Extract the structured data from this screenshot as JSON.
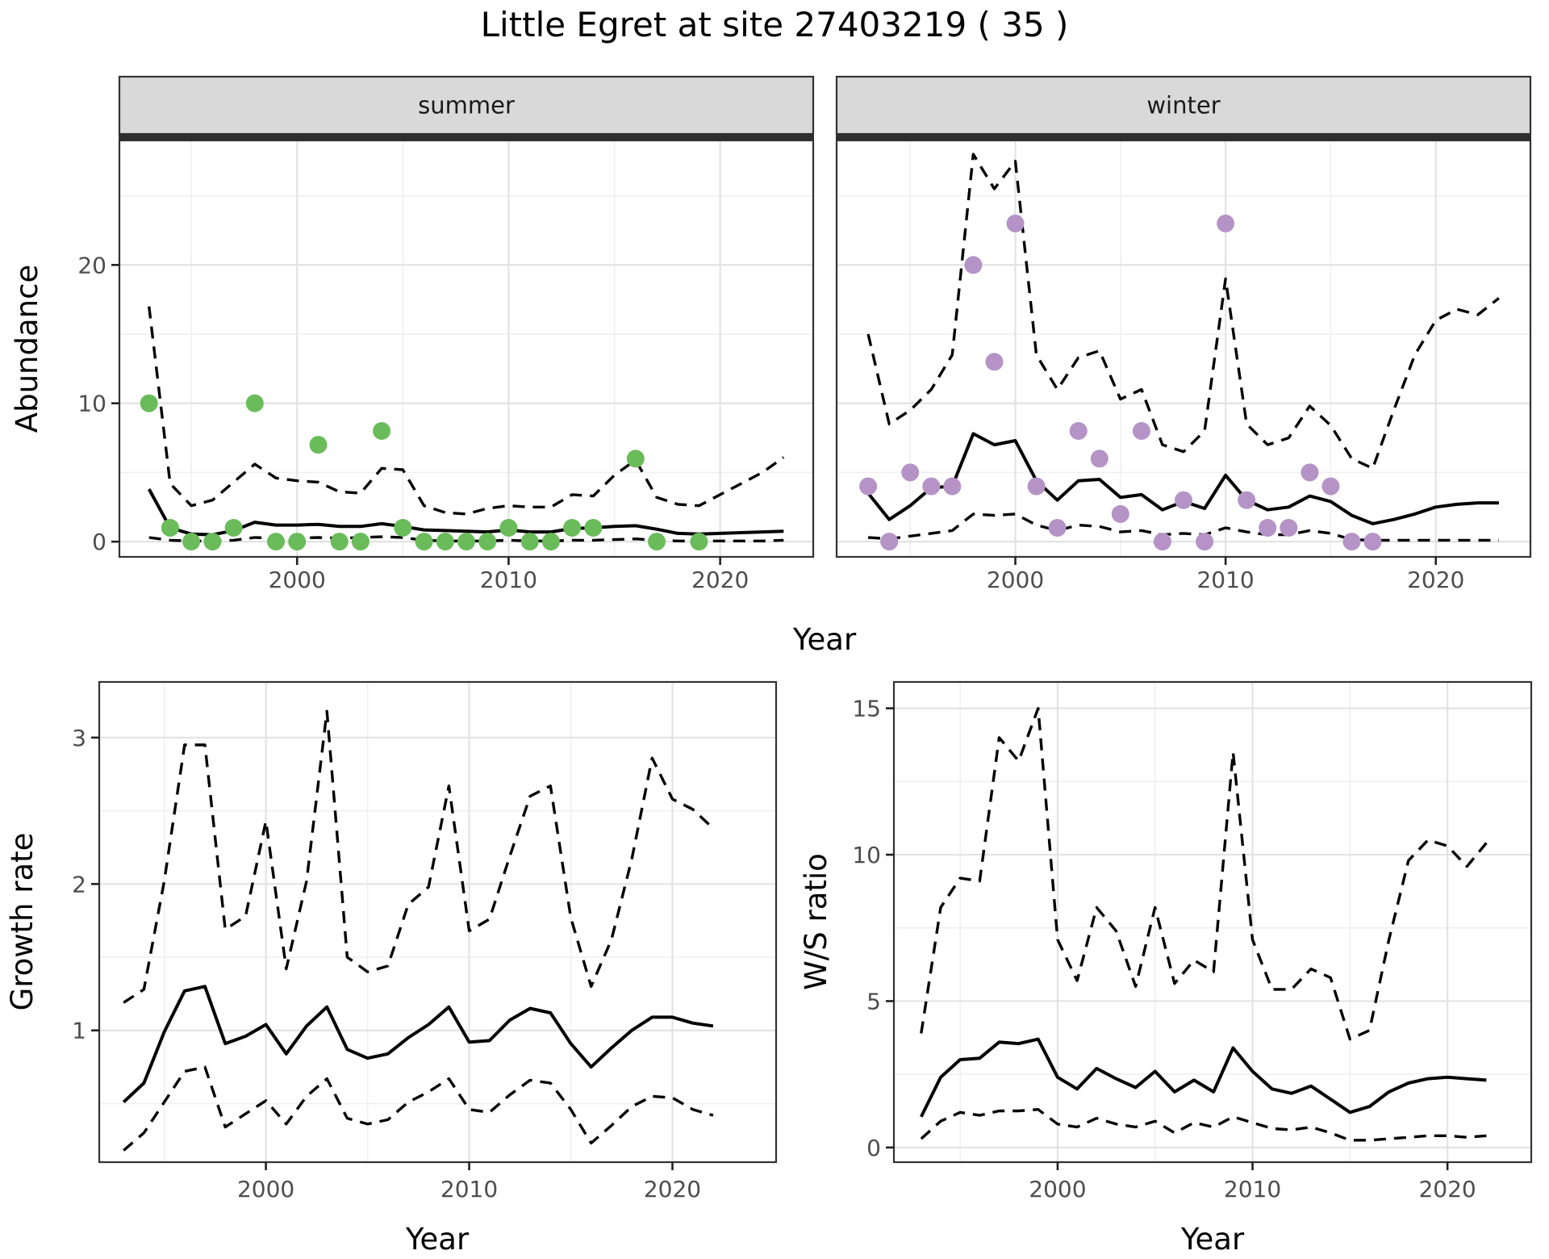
{
  "title": "Little Egret at site 27403219 ( 35 )",
  "colors": {
    "observed_summer": "#6abc5a",
    "observed_winter": "#b593c6",
    "line": "#000000",
    "grid_major": "#e3e3e3",
    "grid_minor": "#efefef",
    "strip_bg": "#d9d9d9",
    "strip_border": "#333333",
    "strip_band": "#2e2e2e",
    "panel_border": "#333333",
    "tick_label": "#4d4d4d",
    "axis_title": "#000000",
    "strip_text": "#1a1a1a"
  },
  "facets": {
    "summer": "summer",
    "winter": "winter"
  },
  "axis_titles": {
    "x": "Year",
    "y_abundance": "Abundance",
    "y_growth": "Growth rate",
    "y_ws": "W/S ratio"
  },
  "chart_data": [
    {
      "id": "abundance_summer",
      "type": "line",
      "facet": "summer",
      "xlabel": "Year",
      "ylabel": "Abundance",
      "grid": true,
      "legend": "none",
      "xlim": [
        1991.6,
        2024.4
      ],
      "ylim": [
        -1.1,
        29.0
      ],
      "x_ticks": {
        "major": [
          2000,
          2010,
          2020
        ],
        "labels": [
          "2000",
          "2010",
          "2020"
        ],
        "minor": [
          1995,
          2005,
          2015
        ]
      },
      "y_ticks": {
        "major": [
          0,
          10,
          20
        ],
        "labels": [
          "0",
          "10",
          "20"
        ],
        "minor": [
          5,
          15,
          25
        ]
      },
      "years": [
        1993,
        1994,
        1995,
        1996,
        1997,
        1998,
        1999,
        2000,
        2001,
        2002,
        2003,
        2004,
        2005,
        2006,
        2007,
        2008,
        2009,
        2010,
        2011,
        2012,
        2013,
        2014,
        2015,
        2016,
        2017,
        2018,
        2019,
        2020,
        2021,
        2022,
        2023
      ],
      "series": [
        {
          "name": "median",
          "style": "solid",
          "values": [
            3.8,
            1.0,
            0.55,
            0.5,
            0.8,
            1.4,
            1.2,
            1.2,
            1.25,
            1.1,
            1.1,
            1.3,
            1.1,
            0.85,
            0.8,
            0.75,
            0.7,
            0.85,
            0.7,
            0.7,
            0.95,
            1.0,
            1.1,
            1.15,
            0.9,
            0.6,
            0.55,
            0.6,
            0.65,
            0.7,
            0.75
          ]
        },
        {
          "name": "lower_95ci",
          "style": "dashed",
          "values": [
            0.3,
            0.1,
            0.05,
            0.05,
            0.1,
            0.3,
            0.25,
            0.25,
            0.3,
            0.25,
            0.3,
            0.35,
            0.3,
            0.1,
            0.05,
            0.05,
            0.05,
            0.1,
            0.05,
            0.05,
            0.1,
            0.1,
            0.15,
            0.2,
            0.1,
            0.05,
            0.05,
            0.05,
            0.05,
            0.05,
            0.1
          ]
        },
        {
          "name": "upper_95ci",
          "style": "dashed",
          "values": [
            17.0,
            4.2,
            2.6,
            3.0,
            4.3,
            5.6,
            4.6,
            4.4,
            4.3,
            3.6,
            3.5,
            5.3,
            5.2,
            2.6,
            2.1,
            2.0,
            2.4,
            2.6,
            2.5,
            2.5,
            3.4,
            3.3,
            4.8,
            5.9,
            3.2,
            2.7,
            2.6,
            3.4,
            4.2,
            5.0,
            6.1
          ]
        }
      ],
      "points": {
        "name": "observed_counts",
        "color_key": "observed_summer",
        "x": [
          1993,
          1994,
          1995,
          1996,
          1997,
          1998,
          1999,
          2000,
          2001,
          2002,
          2003,
          2004,
          2005,
          2006,
          2007,
          2008,
          2009,
          2010,
          2011,
          2012,
          2013,
          2014,
          2016,
          2017,
          2019
        ],
        "y": [
          10,
          1,
          0,
          0,
          1,
          10,
          0,
          0,
          7,
          0,
          0,
          8,
          1,
          0,
          0,
          0,
          0,
          1,
          0,
          0,
          1,
          1,
          6,
          0,
          0
        ]
      }
    },
    {
      "id": "abundance_winter",
      "type": "line",
      "facet": "winter",
      "xlabel": "Year",
      "ylabel": "Abundance",
      "grid": true,
      "legend": "none",
      "xlim": [
        1991.5,
        2024.5
      ],
      "ylim": [
        -1.1,
        29.0
      ],
      "x_ticks": {
        "major": [
          2000,
          2010,
          2020
        ],
        "labels": [
          "2000",
          "2010",
          "2020"
        ],
        "minor": [
          1995,
          2005,
          2015
        ]
      },
      "y_ticks": {
        "major": [
          0,
          10,
          20
        ],
        "labels": [],
        "minor": [
          5,
          15,
          25
        ]
      },
      "years": [
        1993,
        1994,
        1995,
        1996,
        1997,
        1998,
        1999,
        2000,
        2001,
        2002,
        2003,
        2004,
        2005,
        2006,
        2007,
        2008,
        2009,
        2010,
        2011,
        2012,
        2013,
        2014,
        2015,
        2016,
        2017,
        2018,
        2019,
        2020,
        2021,
        2022,
        2023
      ],
      "series": [
        {
          "name": "median",
          "style": "solid",
          "values": [
            3.5,
            1.6,
            2.6,
            3.9,
            4.0,
            7.8,
            7.0,
            7.3,
            4.4,
            3.0,
            4.4,
            4.5,
            3.2,
            3.4,
            2.3,
            2.9,
            2.4,
            4.8,
            3.0,
            2.3,
            2.5,
            3.3,
            2.9,
            1.9,
            1.3,
            1.6,
            2.0,
            2.5,
            2.7,
            2.8,
            2.8
          ]
        },
        {
          "name": "lower_95ci",
          "style": "dashed",
          "values": [
            0.3,
            0.2,
            0.4,
            0.6,
            0.8,
            2.0,
            1.9,
            2.0,
            1.2,
            0.8,
            1.2,
            1.1,
            0.7,
            0.8,
            0.5,
            0.6,
            0.5,
            1.0,
            0.7,
            0.5,
            0.5,
            0.8,
            0.6,
            0.15,
            0.1,
            0.1,
            0.1,
            0.1,
            0.1,
            0.1,
            0.1
          ]
        },
        {
          "name": "upper_95ci",
          "style": "dashed",
          "values": [
            15.0,
            8.5,
            9.5,
            11.0,
            13.5,
            28.0,
            25.5,
            27.5,
            13.5,
            11.0,
            13.3,
            13.8,
            10.3,
            11.0,
            7.0,
            6.5,
            8.0,
            19.0,
            8.5,
            7.0,
            7.5,
            9.8,
            8.4,
            6.0,
            5.3,
            9.5,
            13.5,
            16.0,
            16.8,
            16.4,
            17.6
          ]
        }
      ],
      "points": {
        "name": "observed_counts",
        "color_key": "observed_winter",
        "x": [
          1993,
          1994,
          1995,
          1996,
          1997,
          1998,
          1999,
          2000,
          2001,
          2002,
          2003,
          2004,
          2005,
          2006,
          2007,
          2008,
          2009,
          2010,
          2011,
          2012,
          2013,
          2014,
          2015,
          2016,
          2017
        ],
        "y": [
          4,
          0,
          5,
          4,
          4,
          20,
          13,
          23,
          4,
          1,
          8,
          6,
          2,
          8,
          0,
          3,
          0,
          23,
          3,
          1,
          1,
          5,
          4,
          0,
          0
        ]
      }
    },
    {
      "id": "growth_rate",
      "type": "line",
      "facet": null,
      "xlabel": "Year",
      "ylabel": "Growth rate",
      "grid": true,
      "legend": "none",
      "xlim": [
        1991.8,
        2025.1
      ],
      "ylim": [
        0.1,
        3.38
      ],
      "x_ticks": {
        "major": [
          2000,
          2010,
          2020
        ],
        "labels": [
          "2000",
          "2010",
          "2020"
        ],
        "minor": [
          1995,
          2005,
          2015
        ]
      },
      "y_ticks": {
        "major": [
          1,
          2,
          3
        ],
        "labels": [
          "1",
          "2",
          "3"
        ],
        "minor": [
          0.5,
          1.5,
          2.5
        ]
      },
      "years": [
        1993,
        1994,
        1995,
        1996,
        1997,
        1998,
        1999,
        2000,
        2001,
        2002,
        2003,
        2004,
        2005,
        2006,
        2007,
        2008,
        2009,
        2010,
        2011,
        2012,
        2013,
        2014,
        2015,
        2016,
        2017,
        2018,
        2019,
        2020,
        2021,
        2022
      ],
      "series": [
        {
          "name": "median",
          "style": "solid",
          "values": [
            0.51,
            0.64,
            0.99,
            1.27,
            1.3,
            0.91,
            0.96,
            1.04,
            0.84,
            1.03,
            1.16,
            0.87,
            0.81,
            0.84,
            0.95,
            1.04,
            1.16,
            0.92,
            0.93,
            1.07,
            1.15,
            1.12,
            0.91,
            0.75,
            0.88,
            1.0,
            1.09,
            1.09,
            1.05,
            1.03
          ]
        },
        {
          "name": "lower_95ci",
          "style": "dashed",
          "values": [
            0.18,
            0.3,
            0.51,
            0.72,
            0.75,
            0.34,
            0.43,
            0.52,
            0.36,
            0.55,
            0.67,
            0.4,
            0.36,
            0.39,
            0.51,
            0.58,
            0.67,
            0.46,
            0.44,
            0.56,
            0.66,
            0.64,
            0.46,
            0.23,
            0.35,
            0.48,
            0.55,
            0.54,
            0.46,
            0.42
          ]
        },
        {
          "name": "upper_95ci",
          "style": "dashed",
          "values": [
            1.19,
            1.28,
            2.02,
            2.95,
            2.95,
            1.69,
            1.78,
            2.43,
            1.42,
            2.02,
            3.18,
            1.5,
            1.4,
            1.44,
            1.86,
            1.98,
            2.67,
            1.68,
            1.76,
            2.19,
            2.6,
            2.67,
            1.77,
            1.3,
            1.62,
            2.17,
            2.86,
            2.58,
            2.51,
            2.38
          ]
        }
      ],
      "points": null
    },
    {
      "id": "ws_ratio",
      "type": "line",
      "facet": null,
      "xlabel": "Year",
      "ylabel": "W/S ratio",
      "grid": true,
      "legend": "none",
      "xlim": [
        1991.6,
        2024.3
      ],
      "ylim": [
        -0.5,
        15.9
      ],
      "x_ticks": {
        "major": [
          2000,
          2010,
          2020
        ],
        "labels": [
          "2000",
          "2010",
          "2020"
        ],
        "minor": [
          1995,
          2005,
          2015
        ]
      },
      "y_ticks": {
        "major": [
          0,
          5,
          10,
          15
        ],
        "labels": [
          "0",
          "5",
          "10",
          "15"
        ],
        "minor": [
          2.5,
          7.5,
          12.5
        ]
      },
      "years": [
        1993,
        1994,
        1995,
        1996,
        1997,
        1998,
        1999,
        2000,
        2001,
        2002,
        2003,
        2004,
        2005,
        2006,
        2007,
        2008,
        2009,
        2010,
        2011,
        2012,
        2013,
        2014,
        2015,
        2016,
        2017,
        2018,
        2019,
        2020,
        2021,
        2022
      ],
      "series": [
        {
          "name": "median",
          "style": "solid",
          "values": [
            1.05,
            2.4,
            3.0,
            3.05,
            3.6,
            3.55,
            3.7,
            2.4,
            2.0,
            2.7,
            2.35,
            2.05,
            2.6,
            1.9,
            2.3,
            1.9,
            3.4,
            2.6,
            2.0,
            1.85,
            2.1,
            1.65,
            1.2,
            1.4,
            1.9,
            2.2,
            2.35,
            2.4,
            2.35,
            2.3
          ]
        },
        {
          "name": "lower_95ci",
          "style": "dashed",
          "values": [
            0.3,
            0.9,
            1.2,
            1.1,
            1.25,
            1.25,
            1.3,
            0.8,
            0.7,
            1.0,
            0.8,
            0.7,
            0.9,
            0.5,
            0.85,
            0.7,
            1.05,
            0.85,
            0.65,
            0.6,
            0.7,
            0.5,
            0.25,
            0.25,
            0.3,
            0.35,
            0.4,
            0.4,
            0.35,
            0.4
          ]
        },
        {
          "name": "upper_95ci",
          "style": "dashed",
          "values": [
            3.9,
            8.2,
            9.2,
            9.1,
            14.0,
            13.2,
            15.0,
            7.1,
            5.7,
            8.2,
            7.4,
            5.5,
            8.2,
            5.6,
            6.4,
            6.0,
            13.5,
            7.1,
            5.4,
            5.4,
            6.1,
            5.8,
            3.7,
            4.0,
            7.1,
            9.8,
            10.5,
            10.3,
            9.6,
            10.4
          ]
        }
      ],
      "points": null
    }
  ]
}
